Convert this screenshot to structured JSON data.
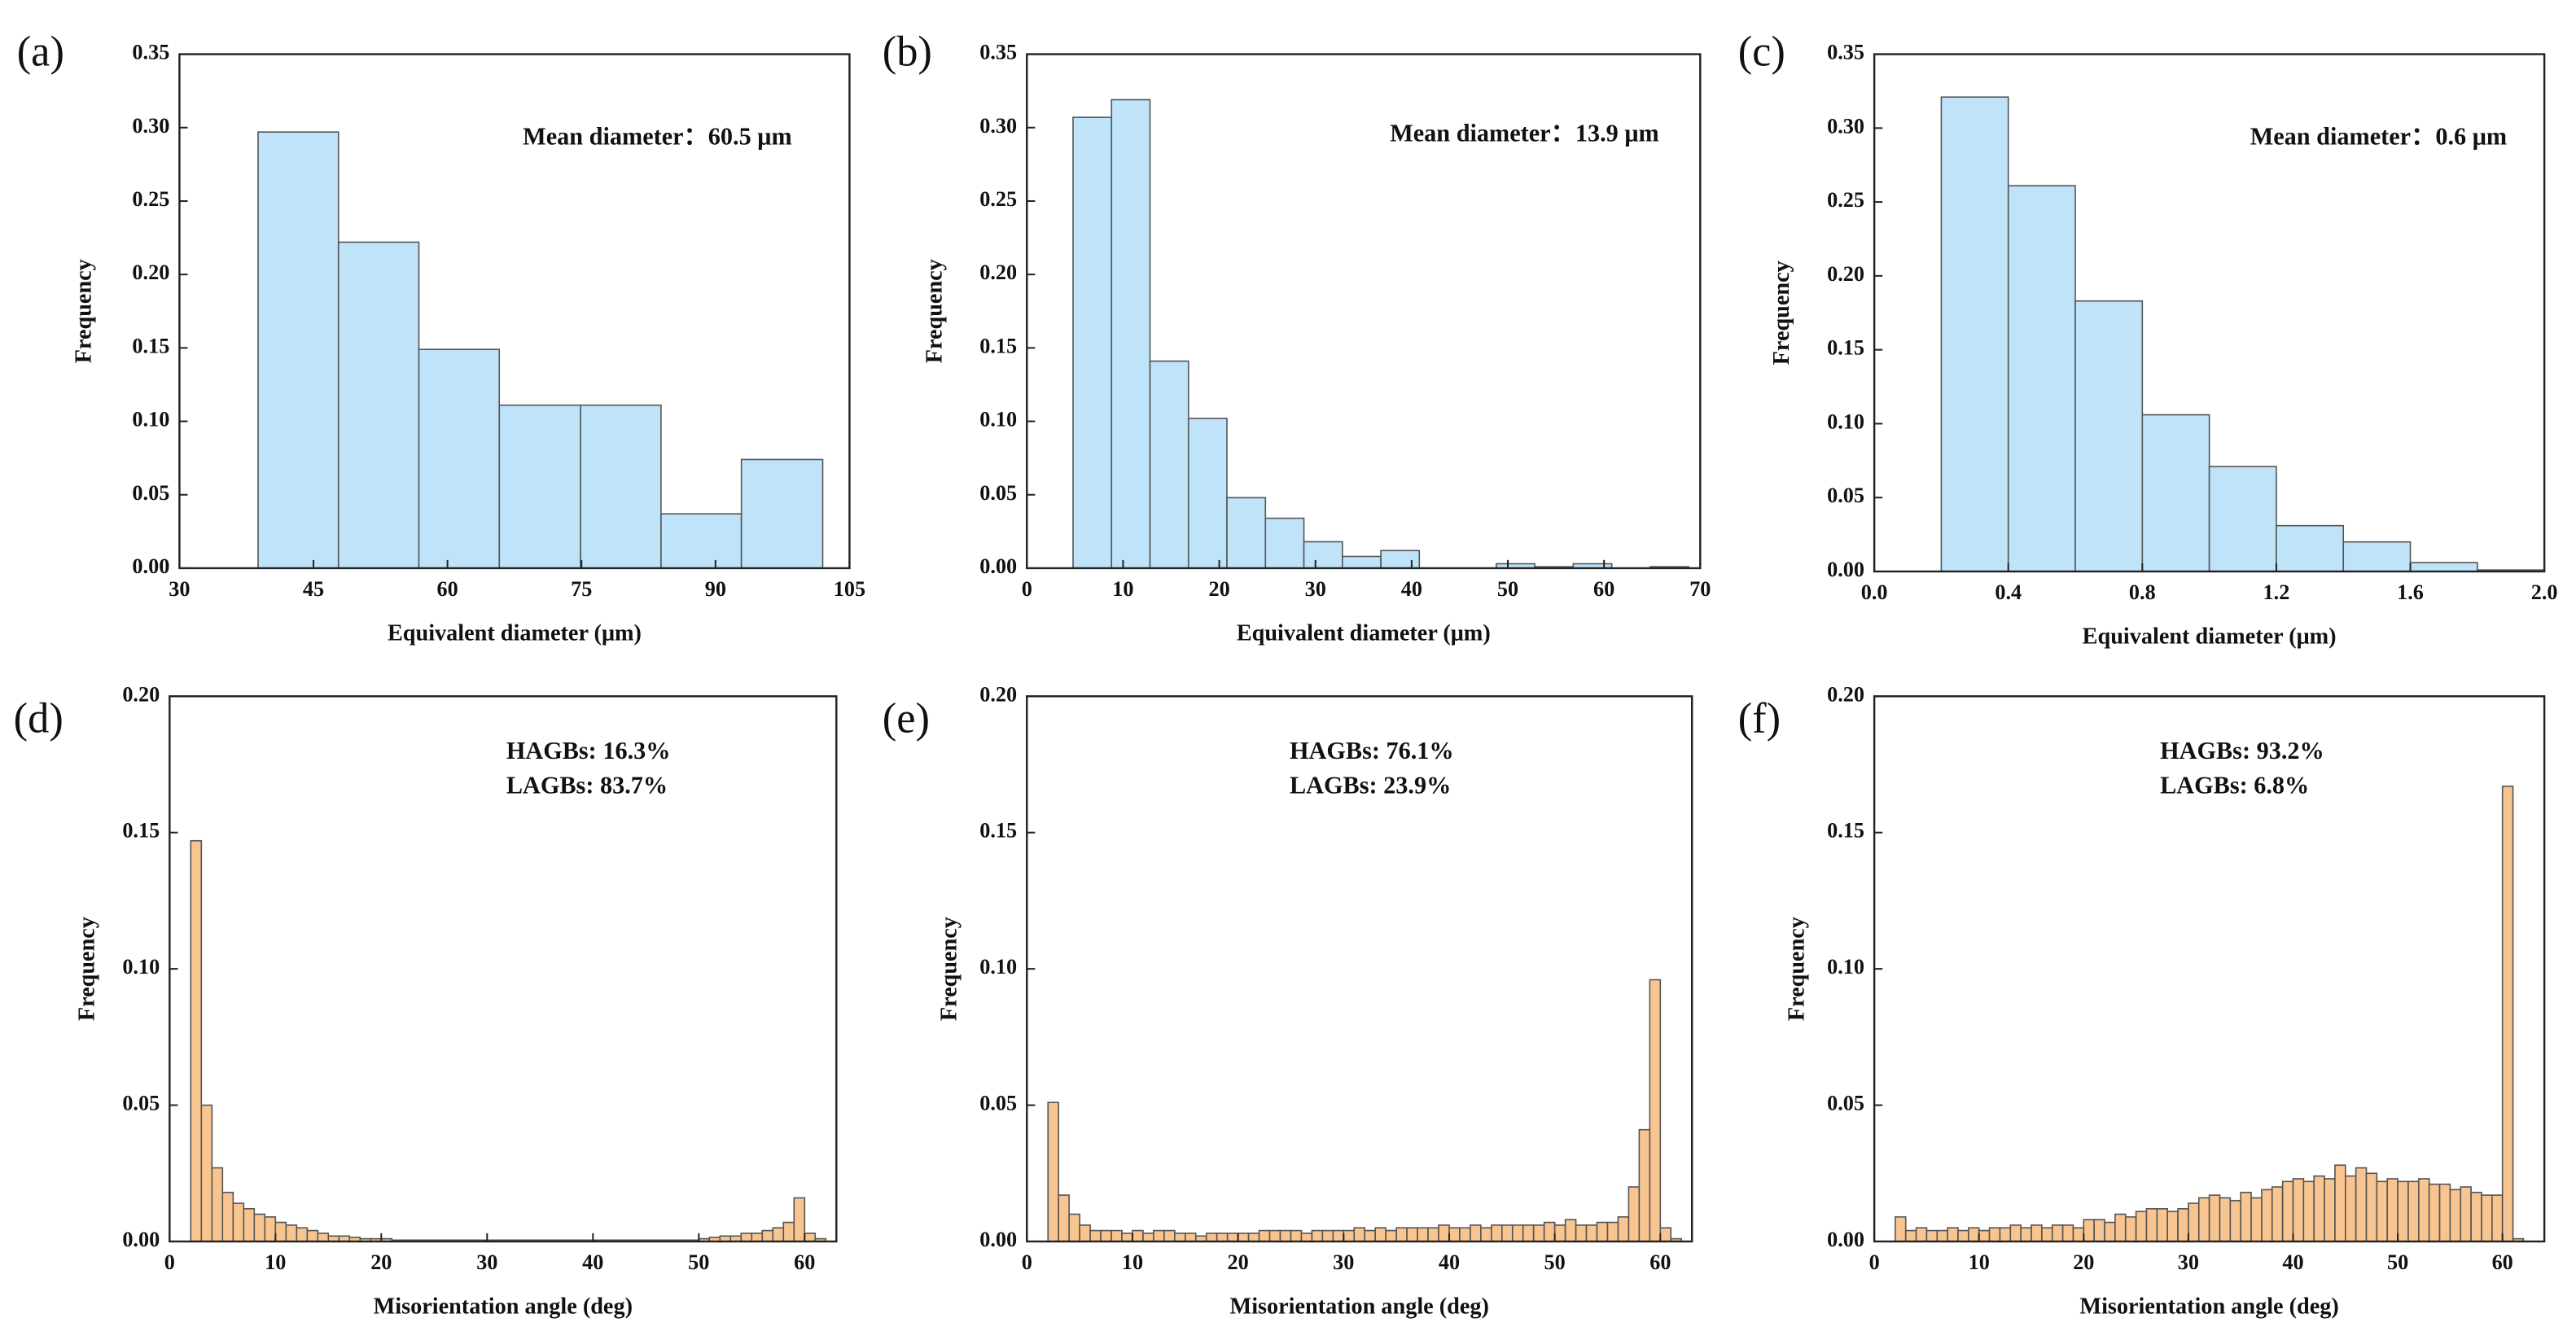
{
  "chart_data": [
    {
      "type": "histogram",
      "label": "(a)",
      "xlabel": "Equivalent diameter (μm)",
      "ylabel": "Frequency",
      "annotations": [
        "Mean diameter：60.5 μm"
      ],
      "color": "#bfe4fa",
      "bins": [
        38.8,
        47.8,
        56.8,
        65.8,
        74.9,
        83.9,
        92.9,
        102.0
      ],
      "values": [
        0.297,
        0.222,
        0.149,
        0.111,
        0.111,
        0.037,
        0.074
      ],
      "xlim": [
        30,
        105
      ],
      "xticks": [
        30,
        45,
        60,
        75,
        90,
        105
      ],
      "ylim": [
        0,
        0.35
      ],
      "yticks": [
        {
          "value": 0,
          "label": "0.00"
        },
        {
          "value": 0.05,
          "label": "0.05"
        },
        {
          "value": 0.1,
          "label": "0.10"
        },
        {
          "value": 0.15,
          "label": "0.15"
        },
        {
          "value": 0.2,
          "label": "0.20"
        },
        {
          "value": 0.25,
          "label": "0.25"
        },
        {
          "value": 0.3,
          "label": "0.30"
        },
        {
          "value": 0.35,
          "label": "0.35"
        }
      ]
    },
    {
      "type": "histogram",
      "label": "(b)",
      "xlabel": "Equivalent diameter (μm)",
      "ylabel": "Frequency",
      "annotations": [
        "Mean diameter：13.9 μm"
      ],
      "color": "#bfe4fa",
      "bins": [
        4.8,
        8.8,
        12.8,
        16.8,
        20.8,
        24.8,
        28.8,
        32.8,
        36.8,
        40.8,
        44.8,
        48.8,
        52.8,
        56.8,
        60.8,
        64.8,
        68.8
      ],
      "values": [
        0.307,
        0.319,
        0.141,
        0.102,
        0.048,
        0.034,
        0.018,
        0.008,
        0.012,
        0,
        0,
        0.003,
        0.001,
        0.003,
        0,
        0.001
      ],
      "xlim": [
        0,
        70
      ],
      "xticks": [
        0,
        10,
        20,
        30,
        40,
        50,
        60,
        70
      ],
      "ylim": [
        0,
        0.35
      ],
      "yticks": [
        {
          "value": 0,
          "label": "0.00"
        },
        {
          "value": 0.05,
          "label": "0.05"
        },
        {
          "value": 0.1,
          "label": "0.10"
        },
        {
          "value": 0.15,
          "label": "0.15"
        },
        {
          "value": 0.2,
          "label": "0.20"
        },
        {
          "value": 0.25,
          "label": "0.25"
        },
        {
          "value": 0.3,
          "label": "0.30"
        },
        {
          "value": 0.35,
          "label": "0.35"
        }
      ]
    },
    {
      "type": "histogram",
      "label": "(c)",
      "xlabel": "Equivalent diameter (μm)",
      "ylabel": "Frequency",
      "annotations": [
        "Mean diameter：0.6 μm"
      ],
      "color": "#bfe4fa",
      "bins": [
        0.2,
        0.4,
        0.6,
        0.8,
        1.0,
        1.2,
        1.4,
        1.6,
        1.8,
        2.0
      ],
      "values": [
        0.321,
        0.261,
        0.183,
        0.106,
        0.071,
        0.031,
        0.02,
        0.006,
        0.001
      ],
      "xlim": [
        0,
        2
      ],
      "xticks": [
        {
          "value": 0,
          "label": "0.0"
        },
        {
          "value": 0.4,
          "label": "0.4"
        },
        {
          "value": 0.8,
          "label": "0.8"
        },
        {
          "value": 1.2,
          "label": "1.2"
        },
        {
          "value": 1.6,
          "label": "1.6"
        },
        {
          "value": 2,
          "label": "2.0"
        }
      ],
      "ylim": [
        0,
        0.35
      ],
      "yticks": [
        {
          "value": 0,
          "label": "0.00"
        },
        {
          "value": 0.05,
          "label": "0.05"
        },
        {
          "value": 0.1,
          "label": "0.10"
        },
        {
          "value": 0.15,
          "label": "0.15"
        },
        {
          "value": 0.2,
          "label": "0.20"
        },
        {
          "value": 0.25,
          "label": "0.25"
        },
        {
          "value": 0.3,
          "label": "0.30"
        },
        {
          "value": 0.35,
          "label": "0.35"
        }
      ]
    },
    {
      "type": "histogram",
      "label": "(d)",
      "xlabel": "Misorientation angle (deg)",
      "ylabel": "Frequency",
      "annotations": [
        "HAGBs: 16.3%",
        "LAGBs: 83.7%"
      ],
      "color": "#f8c590",
      "bins": [
        2,
        3,
        4,
        5,
        6,
        7,
        8,
        9,
        10,
        11,
        12,
        13,
        14,
        15,
        16,
        17,
        18,
        19,
        20,
        21,
        22,
        23,
        24,
        25,
        26,
        27,
        28,
        29,
        30,
        31,
        32,
        33,
        34,
        35,
        36,
        37,
        38,
        39,
        40,
        41,
        42,
        43,
        44,
        45,
        46,
        47,
        48,
        49,
        50,
        51,
        52,
        53,
        54,
        55,
        56,
        57,
        58,
        59,
        60,
        61,
        62
      ],
      "values": [
        0.147,
        0.05,
        0.027,
        0.018,
        0.014,
        0.012,
        0.01,
        0.009,
        0.007,
        0.006,
        0.005,
        0.004,
        0.003,
        0.002,
        0.002,
        0.0015,
        0.001,
        0.001,
        0.001,
        0.0005,
        0.0005,
        0.0005,
        0.0005,
        0.0005,
        0.0005,
        0.0005,
        0.0005,
        0.0005,
        0.0005,
        0.0005,
        0.0005,
        0.0005,
        0.0005,
        0.0005,
        0.0005,
        0.0005,
        0.0005,
        0.0005,
        0.0005,
        0.0005,
        0.0005,
        0.0005,
        0.0005,
        0.0005,
        0.0005,
        0.0005,
        0.0005,
        0.0005,
        0.001,
        0.0015,
        0.002,
        0.002,
        0.003,
        0.003,
        0.004,
        0.005,
        0.007,
        0.016,
        0.003,
        0.001
      ],
      "xlim": [
        0,
        63
      ],
      "xticks": [
        0,
        10,
        20,
        30,
        40,
        50,
        60
      ],
      "ylim": [
        0,
        0.2
      ],
      "yticks": [
        {
          "value": 0,
          "label": "0.00"
        },
        {
          "value": 0.05,
          "label": "0.05"
        },
        {
          "value": 0.1,
          "label": "0.10"
        },
        {
          "value": 0.15,
          "label": "0.15"
        },
        {
          "value": 0.2,
          "label": "0.20"
        }
      ]
    },
    {
      "type": "histogram",
      "label": "(e)",
      "xlabel": "Misorientation angle (deg)",
      "ylabel": "Frequency",
      "annotations": [
        "HAGBs: 76.1%",
        "LAGBs: 23.9%"
      ],
      "color": "#f8c590",
      "bins": [
        2,
        3,
        4,
        5,
        6,
        7,
        8,
        9,
        10,
        11,
        12,
        13,
        14,
        15,
        16,
        17,
        18,
        19,
        20,
        21,
        22,
        23,
        24,
        25,
        26,
        27,
        28,
        29,
        30,
        31,
        32,
        33,
        34,
        35,
        36,
        37,
        38,
        39,
        40,
        41,
        42,
        43,
        44,
        45,
        46,
        47,
        48,
        49,
        50,
        51,
        52,
        53,
        54,
        55,
        56,
        57,
        58,
        59,
        60,
        61,
        62
      ],
      "values": [
        0.051,
        0.017,
        0.01,
        0.006,
        0.004,
        0.004,
        0.004,
        0.003,
        0.004,
        0.003,
        0.004,
        0.004,
        0.003,
        0.003,
        0.002,
        0.003,
        0.003,
        0.003,
        0.003,
        0.003,
        0.004,
        0.004,
        0.004,
        0.004,
        0.003,
        0.004,
        0.004,
        0.004,
        0.004,
        0.005,
        0.004,
        0.005,
        0.004,
        0.005,
        0.005,
        0.005,
        0.005,
        0.006,
        0.005,
        0.005,
        0.006,
        0.005,
        0.006,
        0.006,
        0.006,
        0.006,
        0.006,
        0.007,
        0.006,
        0.008,
        0.006,
        0.006,
        0.007,
        0.007,
        0.009,
        0.02,
        0.041,
        0.096,
        0.005,
        0.001
      ],
      "xlim": [
        0,
        63
      ],
      "xticks": [
        0,
        10,
        20,
        30,
        40,
        50,
        60
      ],
      "ylim": [
        0,
        0.2
      ],
      "yticks": [
        {
          "value": 0,
          "label": "0.00"
        },
        {
          "value": 0.05,
          "label": "0.05"
        },
        {
          "value": 0.1,
          "label": "0.10"
        },
        {
          "value": 0.15,
          "label": "0.15"
        },
        {
          "value": 0.2,
          "label": "0.20"
        }
      ]
    },
    {
      "type": "histogram",
      "label": "(f)",
      "xlabel": "Misorientation angle (deg)",
      "ylabel": "Frequency",
      "annotations": [
        "HAGBs: 93.2%",
        "LAGBs: 6.8%"
      ],
      "color": "#f8c590",
      "bins": [
        2,
        3,
        4,
        5,
        6,
        7,
        8,
        9,
        10,
        11,
        12,
        13,
        14,
        15,
        16,
        17,
        18,
        19,
        20,
        21,
        22,
        23,
        24,
        25,
        26,
        27,
        28,
        29,
        30,
        31,
        32,
        33,
        34,
        35,
        36,
        37,
        38,
        39,
        40,
        41,
        42,
        43,
        44,
        45,
        46,
        47,
        48,
        49,
        50,
        51,
        52,
        53,
        54,
        55,
        56,
        57,
        58,
        59,
        60,
        61,
        62
      ],
      "values": [
        0.009,
        0.004,
        0.005,
        0.004,
        0.004,
        0.005,
        0.004,
        0.005,
        0.004,
        0.005,
        0.005,
        0.006,
        0.005,
        0.006,
        0.005,
        0.006,
        0.006,
        0.005,
        0.008,
        0.008,
        0.007,
        0.01,
        0.009,
        0.011,
        0.012,
        0.012,
        0.011,
        0.012,
        0.014,
        0.016,
        0.017,
        0.016,
        0.015,
        0.018,
        0.016,
        0.019,
        0.02,
        0.022,
        0.023,
        0.022,
        0.024,
        0.023,
        0.028,
        0.024,
        0.027,
        0.025,
        0.022,
        0.023,
        0.022,
        0.022,
        0.023,
        0.021,
        0.021,
        0.019,
        0.02,
        0.018,
        0.017,
        0.017,
        0.167,
        0.001
      ],
      "xlim": [
        0,
        64
      ],
      "xticks": [
        0,
        10,
        20,
        30,
        40,
        50,
        60
      ],
      "ylim": [
        0,
        0.2
      ],
      "yticks": [
        {
          "value": 0,
          "label": "0.00"
        },
        {
          "value": 0.05,
          "label": "0.05"
        },
        {
          "value": 0.1,
          "label": "0.10"
        },
        {
          "value": 0.15,
          "label": "0.15"
        },
        {
          "value": 0.2,
          "label": "0.20"
        }
      ]
    }
  ]
}
